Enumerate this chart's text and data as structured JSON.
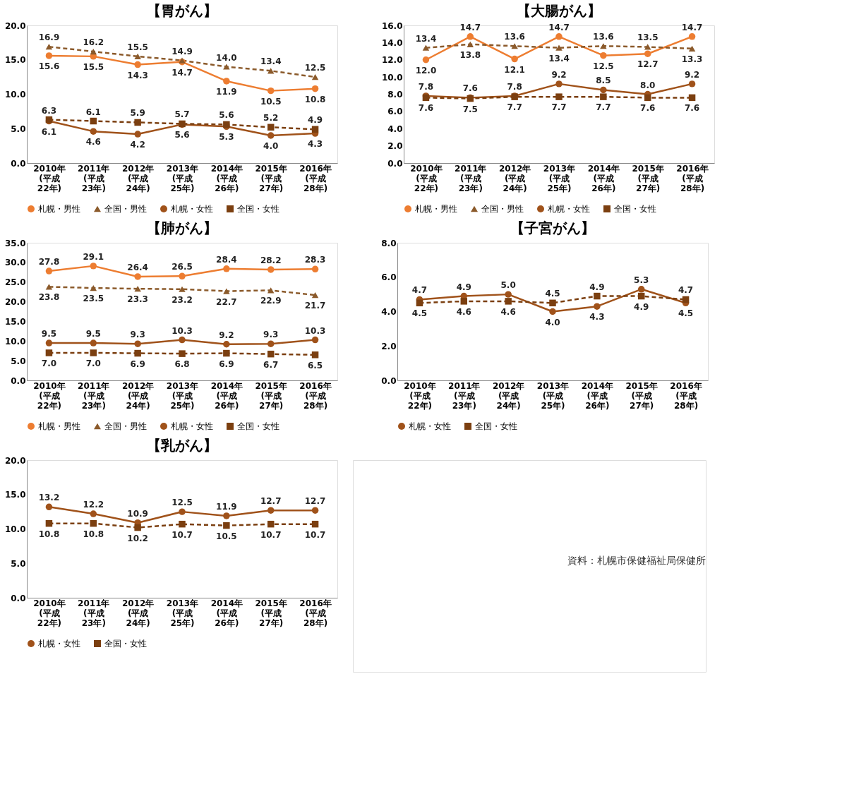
{
  "chart_data": [
    {
      "type": "line",
      "title": "【胃がん】",
      "categories": [
        "2010年\n(平成\n22年)",
        "2011年\n(平成\n23年)",
        "2012年\n(平成\n24年)",
        "2013年\n(平成\n25年)",
        "2014年\n(平成\n26年)",
        "2015年\n(平成\n27年)",
        "2016年\n(平成\n28年)"
      ],
      "ylim": [
        0,
        20
      ],
      "yticks": [
        {
          "value": 0,
          "label": "0.0"
        },
        {
          "value": 5,
          "label": "5.0"
        },
        {
          "value": 10,
          "label": "10.0"
        },
        {
          "value": 15,
          "label": "15.0"
        },
        {
          "value": 20,
          "label": "20.0"
        }
      ],
      "data_labels": true,
      "legend": "bottom",
      "series": [
        {
          "name": "札幌・男性",
          "color": "#ed7d31",
          "marker": "circle",
          "line_style": "solid",
          "values": [
            15.6,
            15.5,
            14.3,
            14.7,
            11.9,
            10.5,
            10.8
          ]
        },
        {
          "name": "全国・男性",
          "color": "#8b5a2b",
          "marker": "triangle",
          "line_style": "dashed",
          "values": [
            16.9,
            16.2,
            15.5,
            14.9,
            14.0,
            13.4,
            12.5
          ],
          "value_labels": [
            "16.9",
            "16.2",
            "15.5",
            "14.9",
            "14.0",
            "13.4",
            "12.5"
          ]
        },
        {
          "name": "札幌・女性",
          "color": "#a0521a",
          "marker": "circle",
          "line_style": "solid",
          "values": [
            6.1,
            4.6,
            4.2,
            5.6,
            5.3,
            4.0,
            4.3
          ],
          "value_labels": [
            "6.1",
            "4.6",
            "4.2",
            "5.6",
            "5.3",
            "4.0",
            "4.3"
          ]
        },
        {
          "name": "全国・女性",
          "color": "#7b3f10",
          "marker": "square",
          "line_style": "dashed",
          "values": [
            6.3,
            6.1,
            5.9,
            5.7,
            5.6,
            5.2,
            4.9
          ]
        }
      ]
    },
    {
      "type": "line",
      "title": "【大腸がん】",
      "categories": [
        "2010年\n(平成\n22年)",
        "2011年\n(平成\n23年)",
        "2012年\n(平成\n24年)",
        "2013年\n(平成\n25年)",
        "2014年\n(平成\n26年)",
        "2015年\n(平成\n27年)",
        "2016年\n(平成\n28年)"
      ],
      "ylim": [
        0,
        16
      ],
      "yticks": [
        {
          "value": 0,
          "label": "0.0"
        },
        {
          "value": 2,
          "label": "2.0"
        },
        {
          "value": 4,
          "label": "4.0"
        },
        {
          "value": 6,
          "label": "6.0"
        },
        {
          "value": 8,
          "label": "8.0"
        },
        {
          "value": 10,
          "label": "10.0"
        },
        {
          "value": 12,
          "label": "12.0"
        },
        {
          "value": 14,
          "label": "14.0"
        },
        {
          "value": 16,
          "label": "16.0"
        }
      ],
      "data_labels": true,
      "legend": "bottom",
      "series": [
        {
          "name": "札幌・男性",
          "color": "#ed7d31",
          "marker": "circle",
          "line_style": "solid",
          "values": [
            12.0,
            14.7,
            12.1,
            14.7,
            12.5,
            12.7,
            14.7
          ],
          "value_labels": [
            "12.0",
            "14.7",
            "12.1",
            "14.7",
            "12.5",
            "12.7",
            "14.7"
          ]
        },
        {
          "name": "全国・男性",
          "color": "#8b5a2b",
          "marker": "triangle",
          "line_style": "dashed",
          "values": [
            13.4,
            13.8,
            13.6,
            13.4,
            13.6,
            13.5,
            13.3
          ]
        },
        {
          "name": "札幌・女性",
          "color": "#a0521a",
          "marker": "circle",
          "line_style": "solid",
          "values": [
            7.8,
            7.6,
            7.8,
            9.2,
            8.5,
            8.0,
            9.2
          ],
          "value_labels": [
            "7.8",
            "7.6",
            "7.8",
            "9.2",
            "8.5",
            "8.0",
            "9.2"
          ]
        },
        {
          "name": "全国・女性",
          "color": "#7b3f10",
          "marker": "square",
          "line_style": "dashed",
          "values": [
            7.6,
            7.5,
            7.7,
            7.7,
            7.7,
            7.6,
            7.6
          ]
        }
      ]
    },
    {
      "type": "line",
      "title": "【肺がん】",
      "categories": [
        "2010年\n(平成\n22年)",
        "2011年\n(平成\n23年)",
        "2012年\n(平成\n24年)",
        "2013年\n(平成\n25年)",
        "2014年\n(平成\n26年)",
        "2015年\n(平成\n27年)",
        "2016年\n(平成\n28年)"
      ],
      "ylim": [
        0,
        35
      ],
      "yticks": [
        {
          "value": 0,
          "label": "0.0"
        },
        {
          "value": 5,
          "label": "5.0"
        },
        {
          "value": 10,
          "label": "10.0"
        },
        {
          "value": 15,
          "label": "15.0"
        },
        {
          "value": 20,
          "label": "20.0"
        },
        {
          "value": 25,
          "label": "25.0"
        },
        {
          "value": 30,
          "label": "30.0"
        },
        {
          "value": 35,
          "label": "35.0"
        }
      ],
      "data_labels": true,
      "legend": "bottom",
      "series": [
        {
          "name": "札幌・男性",
          "color": "#ed7d31",
          "marker": "circle",
          "line_style": "solid",
          "values": [
            27.8,
            29.1,
            26.4,
            26.5,
            28.4,
            28.2,
            28.3
          ]
        },
        {
          "name": "全国・男性",
          "color": "#8b5a2b",
          "marker": "triangle",
          "line_style": "dashed",
          "values": [
            23.8,
            23.5,
            23.3,
            23.2,
            22.7,
            22.9,
            21.7
          ]
        },
        {
          "name": "札幌・女性",
          "color": "#a0521a",
          "marker": "circle",
          "line_style": "solid",
          "values": [
            9.5,
            9.5,
            9.3,
            10.3,
            9.2,
            9.3,
            10.3
          ]
        },
        {
          "name": "全国・女性",
          "color": "#7b3f10",
          "marker": "square",
          "line_style": "dashed",
          "values": [
            7.0,
            7.0,
            6.9,
            6.8,
            6.9,
            6.7,
            6.5
          ],
          "value_labels": [
            "7.0",
            "7.0",
            "6.9",
            "6.8",
            "6.9",
            "6.7",
            "6.5"
          ]
        }
      ]
    },
    {
      "type": "line",
      "title": "【子宮がん】",
      "categories": [
        "2010年\n(平成\n22年)",
        "2011年\n(平成\n23年)",
        "2012年\n(平成\n24年)",
        "2013年\n(平成\n25年)",
        "2014年\n(平成\n26年)",
        "2015年\n(平成\n27年)",
        "2016年\n(平成\n28年)"
      ],
      "ylim": [
        0,
        8
      ],
      "yticks": [
        {
          "value": 0,
          "label": "0.0"
        },
        {
          "value": 2,
          "label": "2.0"
        },
        {
          "value": 4,
          "label": "4.0"
        },
        {
          "value": 6,
          "label": "6.0"
        },
        {
          "value": 8,
          "label": "8.0"
        }
      ],
      "data_labels": true,
      "legend": "bottom",
      "series": [
        {
          "name": "札幌・女性",
          "color": "#a0521a",
          "marker": "circle",
          "line_style": "solid",
          "values": [
            4.7,
            4.9,
            5.0,
            4.0,
            4.3,
            5.3,
            4.5
          ],
          "value_labels": [
            "4.7",
            "4.9",
            "5.0",
            "4.0",
            "4.3",
            "5.3",
            "4.5"
          ]
        },
        {
          "name": "全国・女性",
          "color": "#7b3f10",
          "marker": "square",
          "line_style": "dashed",
          "values": [
            4.5,
            4.6,
            4.6,
            4.5,
            4.9,
            4.9,
            4.7
          ]
        }
      ]
    },
    {
      "type": "line",
      "title": "【乳がん】",
      "categories": [
        "2010年\n(平成\n22年)",
        "2011年\n(平成\n23年)",
        "2012年\n(平成\n24年)",
        "2013年\n(平成\n25年)",
        "2014年\n(平成\n26年)",
        "2015年\n(平成\n27年)",
        "2016年\n(平成\n28年)"
      ],
      "ylim": [
        0,
        20
      ],
      "yticks": [
        {
          "value": 0,
          "label": "0.0"
        },
        {
          "value": 5,
          "label": "5.0"
        },
        {
          "value": 10,
          "label": "10.0"
        },
        {
          "value": 15,
          "label": "15.0"
        },
        {
          "value": 20,
          "label": "20.0"
        }
      ],
      "data_labels": true,
      "legend": "bottom",
      "annotations": [
        "資料：札幌市保健福祉局保健所"
      ],
      "series": [
        {
          "name": "札幌・女性",
          "color": "#a0521a",
          "marker": "circle",
          "line_style": "solid",
          "values": [
            13.2,
            12.2,
            10.9,
            12.5,
            11.9,
            12.7,
            12.7
          ]
        },
        {
          "name": "全国・女性",
          "color": "#7b3f10",
          "marker": "square",
          "line_style": "dashed",
          "values": [
            10.8,
            10.8,
            10.2,
            10.7,
            10.5,
            10.7,
            10.7
          ]
        }
      ]
    }
  ]
}
